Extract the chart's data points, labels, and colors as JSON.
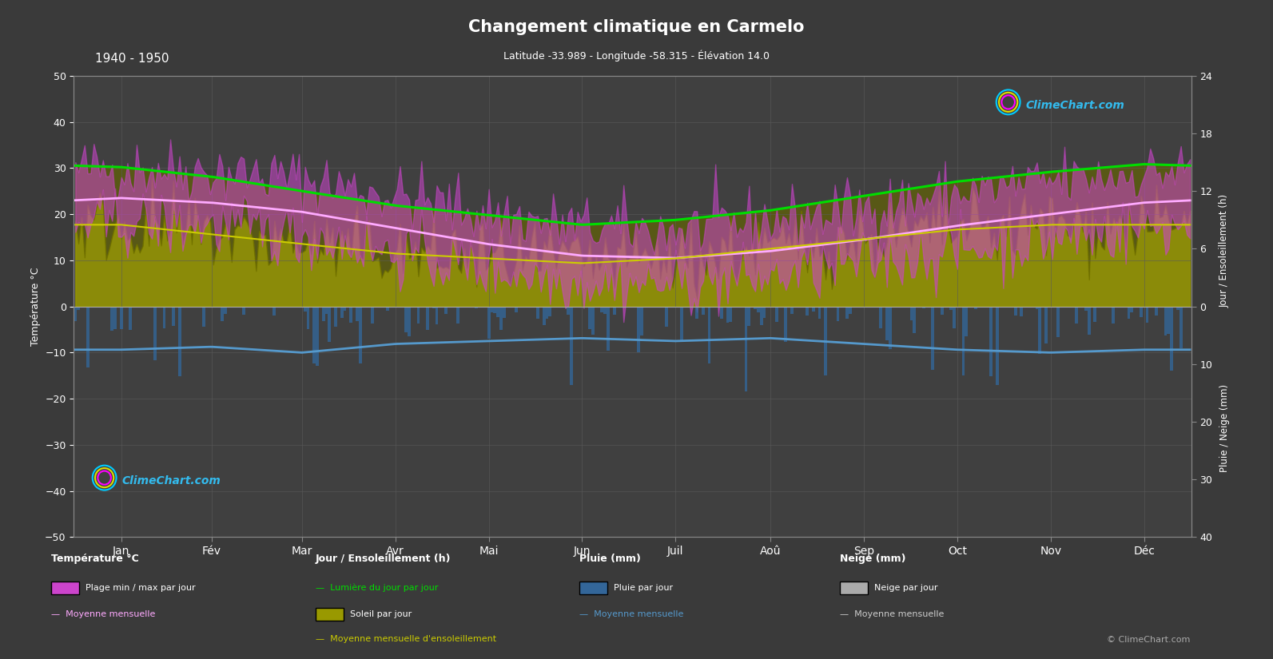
{
  "title": "Changement climatique en Carmelo",
  "subtitle": "Latitude -33.989 - Longitude -58.315 - Élévation 14.0",
  "period": "1940 - 1950",
  "bg_color": "#3a3a3a",
  "plot_bg": "#404040",
  "grid_color": "#5a5a5a",
  "months": [
    "Jan",
    "Fév",
    "Mar",
    "Avr",
    "Mai",
    "Jun",
    "Juil",
    "Aoû",
    "Sep",
    "Oct",
    "Nov",
    "Déc"
  ],
  "months_days": [
    0,
    31,
    59,
    90,
    120,
    151,
    181,
    212,
    243,
    273,
    304,
    334,
    365
  ],
  "temp_ylim": [
    -50,
    50
  ],
  "sun_ylim": [
    0,
    24
  ],
  "rain_ylim": [
    0,
    40
  ],
  "temp_mean": [
    23.5,
    22.5,
    20.5,
    17.0,
    13.5,
    11.0,
    10.5,
    12.0,
    14.5,
    17.5,
    20.0,
    22.5
  ],
  "temp_max": [
    30.0,
    29.5,
    27.5,
    24.0,
    20.0,
    17.0,
    16.5,
    18.5,
    21.0,
    24.5,
    27.0,
    29.0
  ],
  "temp_min": [
    18.0,
    17.5,
    15.5,
    11.5,
    8.0,
    5.5,
    5.0,
    6.5,
    9.5,
    12.0,
    14.5,
    17.0
  ],
  "sun_mean": [
    8.5,
    7.5,
    6.5,
    5.5,
    5.0,
    4.5,
    5.0,
    6.0,
    7.0,
    8.0,
    8.5,
    8.5
  ],
  "daylight": [
    14.5,
    13.5,
    12.0,
    10.5,
    9.5,
    8.5,
    9.0,
    10.0,
    11.5,
    13.0,
    14.0,
    14.8
  ],
  "rain_daily": [
    3.5,
    3.2,
    3.8,
    3.0,
    2.5,
    2.8,
    3.0,
    2.8,
    3.2,
    3.5,
    3.8,
    3.5
  ],
  "rain_mean": [
    7.5,
    7.0,
    8.0,
    6.5,
    6.0,
    5.5,
    6.0,
    5.5,
    6.5,
    7.5,
    8.0,
    7.5
  ],
  "colors": {
    "temp_fill": "#cc44cc",
    "temp_line": "#ffaaff",
    "sun_fill_bright": "#999900",
    "sun_fill_dim": "#666600",
    "daylight_line": "#00dd00",
    "sun_line": "#cccc00",
    "rain_bar": "#336699",
    "rain_line": "#5599cc",
    "text": "#ffffff",
    "watermark": "#33bbee"
  }
}
